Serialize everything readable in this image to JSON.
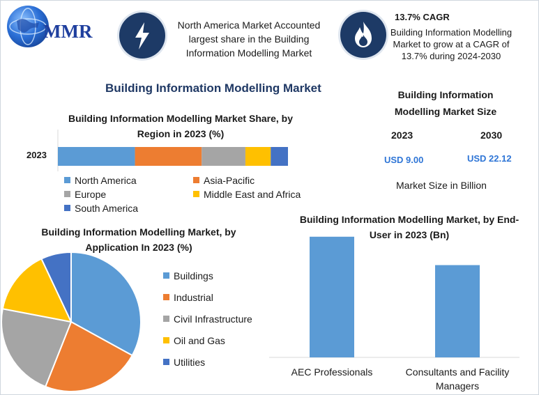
{
  "logo": {
    "text": "MMR"
  },
  "header": {
    "share_note": "North America Market Accounted largest share in the Building Information Modelling Market",
    "cagr_title": "13.7% CAGR",
    "cagr_note": "Building Information Modelling Market to grow at a CAGR of 13.7% during 2024-2030"
  },
  "main_title": "Building Information Modelling Market",
  "market_size": {
    "title": "Building Information Modelling Market Size",
    "year_a": "2023",
    "year_b": "2030",
    "value_a": "USD 9.00",
    "value_b": "USD 22.12",
    "unit_note": "Market Size in Billion"
  },
  "colors": {
    "blue": "#5b9bd5",
    "orange": "#ed7d31",
    "gray": "#a5a5a5",
    "yellow": "#ffc000",
    "darkblue": "#4472c4",
    "navy": "#1d3a66",
    "accent": "#2e75d6"
  },
  "icons": {
    "share": "lightning-bolt-icon",
    "cagr": "flame-icon",
    "logo": "globe-icon"
  },
  "chart_data": [
    {
      "type": "bar",
      "orientation": "horizontal-stacked",
      "title": "Building Information Modelling Market Share, by Region in 2023 (%)",
      "categories": [
        "2023"
      ],
      "series": [
        {
          "name": "North America",
          "values": [
            33.5
          ]
        },
        {
          "name": "Asia-Pacific",
          "values": [
            29
          ]
        },
        {
          "name": "Europe",
          "values": [
            19
          ]
        },
        {
          "name": "Middle East and Africa",
          "values": [
            11
          ]
        },
        {
          "name": "South America",
          "values": [
            7.5
          ]
        }
      ],
      "legend_placement": "bottom",
      "grid": false
    },
    {
      "type": "pie",
      "title": "Building Information Modelling Market, by Application In 2023 (%)",
      "labels": [
        "Buildings",
        "Industrial",
        "Civil Infrastructure",
        "Oil and Gas",
        "Utilities"
      ],
      "values": [
        33,
        23,
        22,
        15,
        7
      ],
      "legend_placement": "right"
    },
    {
      "type": "bar",
      "title": "Building Information Modelling Market, by End-User in 2023 (Bn)",
      "categories": [
        "AEC Professionals",
        "Consultants and Facility Managers"
      ],
      "values": [
        5.1,
        3.9
      ],
      "ylim": [
        0,
        5.3
      ],
      "grid": false
    }
  ]
}
